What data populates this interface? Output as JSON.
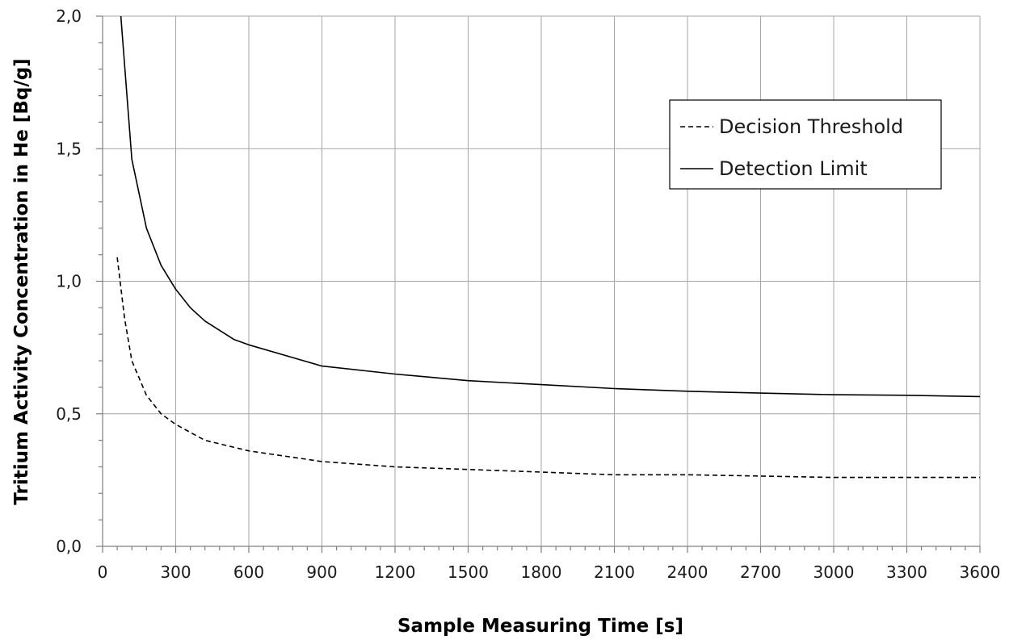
{
  "chart_data": {
    "type": "line",
    "xlabel": "Sample Measuring Time  [s]",
    "ylabel": "Tritium  Activity Concentration in He [Bq/g]",
    "xlim": [
      0,
      3600
    ],
    "ylim": [
      0,
      2
    ],
    "x_ticks": [
      0,
      300,
      600,
      900,
      1200,
      1500,
      1800,
      2100,
      2400,
      2700,
      3000,
      3300,
      3600
    ],
    "x_tick_labels": [
      "0",
      "300",
      "600",
      "900",
      "1200",
      "1500",
      "1800",
      "2100",
      "2400",
      "2700",
      "3000",
      "3300",
      "3600"
    ],
    "y_ticks": [
      0,
      0.5,
      1,
      1.5,
      2
    ],
    "y_tick_labels": [
      "0,0",
      "0,5",
      "1,0",
      "1,5",
      "2,0"
    ],
    "grid": true,
    "legend_position": "top-right",
    "series": [
      {
        "name": "Decision Threshold",
        "line_style": "dashed",
        "color": "#000000",
        "points": [
          [
            60,
            1.09
          ],
          [
            90,
            0.86
          ],
          [
            120,
            0.7
          ],
          [
            180,
            0.57
          ],
          [
            240,
            0.5
          ],
          [
            300,
            0.46
          ],
          [
            420,
            0.4
          ],
          [
            600,
            0.36
          ],
          [
            900,
            0.32
          ],
          [
            1200,
            0.3
          ],
          [
            1500,
            0.29
          ],
          [
            1800,
            0.28
          ],
          [
            2100,
            0.27
          ],
          [
            2400,
            0.27
          ],
          [
            2700,
            0.265
          ],
          [
            3000,
            0.26
          ],
          [
            3300,
            0.26
          ],
          [
            3600,
            0.26
          ]
        ]
      },
      {
        "name": "Detection Limit",
        "line_style": "solid",
        "color": "#000000",
        "points": [
          [
            75,
            2.0
          ],
          [
            120,
            1.46
          ],
          [
            180,
            1.2
          ],
          [
            240,
            1.06
          ],
          [
            300,
            0.97
          ],
          [
            360,
            0.9
          ],
          [
            420,
            0.85
          ],
          [
            540,
            0.78
          ],
          [
            600,
            0.76
          ],
          [
            900,
            0.68
          ],
          [
            1200,
            0.65
          ],
          [
            1500,
            0.625
          ],
          [
            1800,
            0.61
          ],
          [
            2100,
            0.595
          ],
          [
            2400,
            0.585
          ],
          [
            2700,
            0.578
          ],
          [
            3000,
            0.572
          ],
          [
            3300,
            0.57
          ],
          [
            3600,
            0.565
          ]
        ]
      }
    ]
  }
}
